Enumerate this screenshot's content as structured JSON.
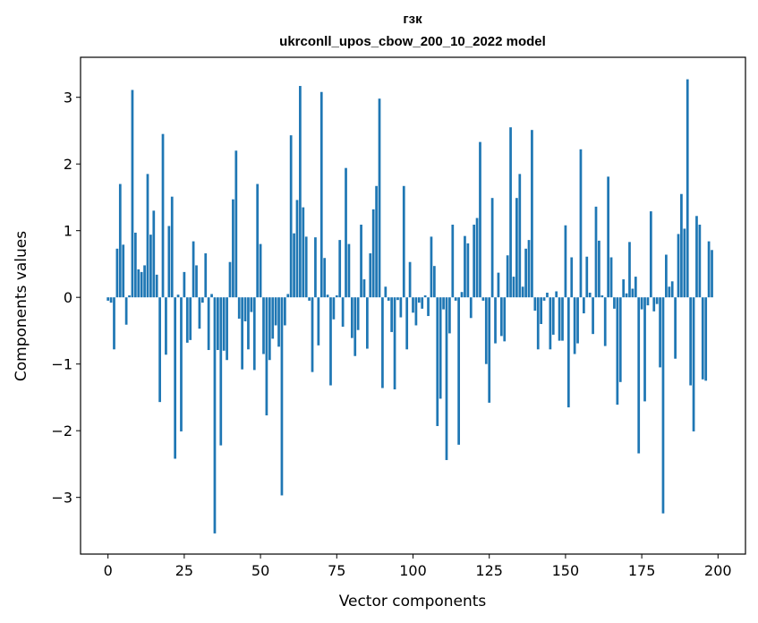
{
  "chart_data": {
    "type": "bar",
    "title": "гзк",
    "subtitle": "ukrconll_upos_cbow_200_10_2022 model",
    "xlabel": "Vector components",
    "ylabel": "Components values",
    "xlim": [
      -9,
      209
    ],
    "ylim": [
      -3.85,
      3.6
    ],
    "xticks": [
      0,
      25,
      50,
      75,
      100,
      125,
      150,
      175,
      200
    ],
    "yticks": [
      -3,
      -2,
      -1,
      0,
      1,
      2,
      3
    ],
    "grid": false,
    "bar_color": "#1f77b4",
    "x_start": 0,
    "values": [
      -0.05,
      -0.08,
      -0.78,
      0.73,
      1.7,
      0.79,
      -0.41,
      0.03,
      3.11,
      0.97,
      0.42,
      0.38,
      0.48,
      1.85,
      0.94,
      1.3,
      0.34,
      -1.57,
      2.45,
      -0.86,
      1.07,
      1.51,
      -2.42,
      0.04,
      -2.01,
      0.38,
      -0.68,
      -0.64,
      0.84,
      0.48,
      -0.47,
      -0.08,
      0.66,
      -0.79,
      0.05,
      -3.54,
      -0.79,
      -2.22,
      -0.8,
      -0.94,
      0.53,
      1.47,
      2.2,
      -0.32,
      -1.08,
      -0.36,
      -0.78,
      -0.22,
      -1.09,
      1.7,
      0.8,
      -0.85,
      -1.77,
      -0.94,
      -0.62,
      -0.42,
      -0.74,
      -2.97,
      -0.42,
      0.05,
      2.43,
      0.96,
      1.46,
      3.17,
      1.35,
      0.91,
      -0.05,
      -1.12,
      0.9,
      -0.72,
      3.08,
      0.59,
      0.04,
      -1.32,
      -0.33,
      0.03,
      0.86,
      -0.44,
      1.94,
      0.8,
      -0.61,
      -0.88,
      -0.49,
      1.09,
      0.27,
      -0.77,
      0.66,
      1.32,
      1.67,
      2.98,
      -1.36,
      0.16,
      -0.05,
      -0.52,
      -1.38,
      -0.04,
      -0.3,
      1.67,
      -0.78,
      0.53,
      -0.23,
      -0.42,
      -0.08,
      -0.17,
      0.03,
      -0.28,
      0.91,
      0.47,
      -1.93,
      -1.52,
      -0.18,
      -2.44,
      -0.54,
      1.09,
      -0.05,
      -2.21,
      0.08,
      0.92,
      0.81,
      -0.31,
      1.09,
      1.19,
      2.33,
      -0.05,
      -1.0,
      -1.58,
      1.49,
      -0.69,
      0.37,
      -0.58,
      -0.66,
      0.63,
      2.55,
      0.31,
      1.49,
      1.85,
      0.16,
      0.73,
      0.86,
      2.51,
      -0.2,
      -0.78,
      -0.4,
      -0.05,
      0.07,
      -0.78,
      -0.56,
      0.09,
      -0.65,
      -0.65,
      1.08,
      -1.65,
      0.6,
      -0.85,
      -0.69,
      2.22,
      -0.24,
      0.61,
      0.07,
      -0.55,
      1.36,
      0.85,
      0.03,
      -0.73,
      1.81,
      0.6,
      -0.17,
      -1.61,
      -1.27,
      0.27,
      0.06,
      0.83,
      0.13,
      0.31,
      -2.34,
      -0.18,
      -1.56,
      -0.12,
      1.29,
      -0.21,
      -0.1,
      -1.05,
      -3.24,
      0.64,
      0.16,
      0.24,
      -0.92,
      0.95,
      1.55,
      1.03,
      3.27,
      -1.32,
      -2.01,
      1.22,
      1.09,
      -1.23,
      -1.25,
      0.84,
      0.71
    ]
  }
}
